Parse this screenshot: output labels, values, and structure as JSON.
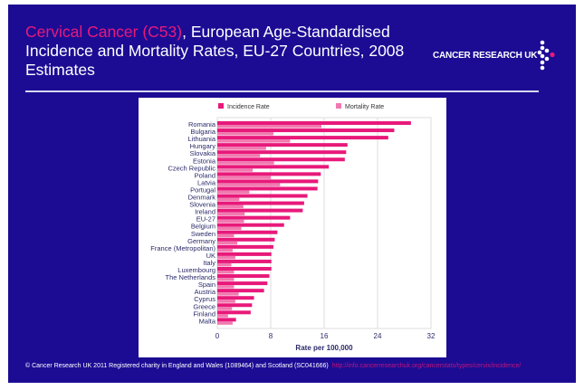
{
  "title": {
    "highlight": "Cervical Cancer (C53)",
    "rest": ", European Age-Standardised Incidence and Mortality Rates, EU-27 Countries, 2008 Estimates"
  },
  "logo": {
    "text": "CANCER RESEARCH UK"
  },
  "footer": {
    "copyright": "© Cancer Research UK 2011   Registered charity in England and Wales (1089464) and Scotland (SC041666)",
    "url": "http://info.cancerresearchuk.org/cancerstats/types/cervix/incidence/"
  },
  "colors": {
    "background": "#1c0c94",
    "incidence": "#e8197a",
    "mortality": "#f07ab0",
    "accent": "#e8197a"
  },
  "chart_data": {
    "type": "bar",
    "orientation": "horizontal",
    "title": "",
    "xlabel": "Rate per 100,000",
    "ylabel": "",
    "xlim": [
      0,
      32
    ],
    "xticks": [
      "0",
      "8",
      "16",
      "24",
      "32"
    ],
    "grid": true,
    "legend_position": "top",
    "categories": [
      "Romania",
      "Bulgaria",
      "Lithuania",
      "Hungary",
      "Slovakia",
      "Estonia",
      "Czech Republic",
      "Poland",
      "Latvia",
      "Portugal",
      "Denmark",
      "Slovenia",
      "Ireland",
      "EU-27",
      "Belgium",
      "Sweden",
      "Germany",
      "France (Metropolitan)",
      "UK",
      "Italy",
      "Luxembourg",
      "The Netherlands",
      "Spain",
      "Austria",
      "Cyprus",
      "Greece",
      "Finland",
      "Malta"
    ],
    "series": [
      {
        "name": "Incidence Rate",
        "values": [
          29.0,
          26.5,
          25.6,
          19.5,
          19.3,
          19.1,
          16.7,
          15.5,
          15.1,
          15.0,
          13.5,
          13.0,
          12.8,
          10.9,
          10.0,
          9.0,
          8.6,
          8.4,
          8.1,
          8.1,
          8.1,
          7.8,
          7.5,
          7.0,
          5.5,
          5.2,
          5.0,
          2.8
        ]
      },
      {
        "name": "Mortality Rate",
        "values": [
          15.6,
          8.4,
          10.9,
          7.3,
          6.4,
          8.5,
          5.3,
          8.0,
          9.4,
          4.8,
          3.3,
          3.9,
          4.1,
          4.0,
          3.6,
          2.5,
          3.0,
          2.3,
          2.7,
          2.1,
          2.5,
          2.5,
          2.5,
          3.2,
          2.7,
          2.2,
          1.6,
          2.3
        ]
      }
    ]
  }
}
